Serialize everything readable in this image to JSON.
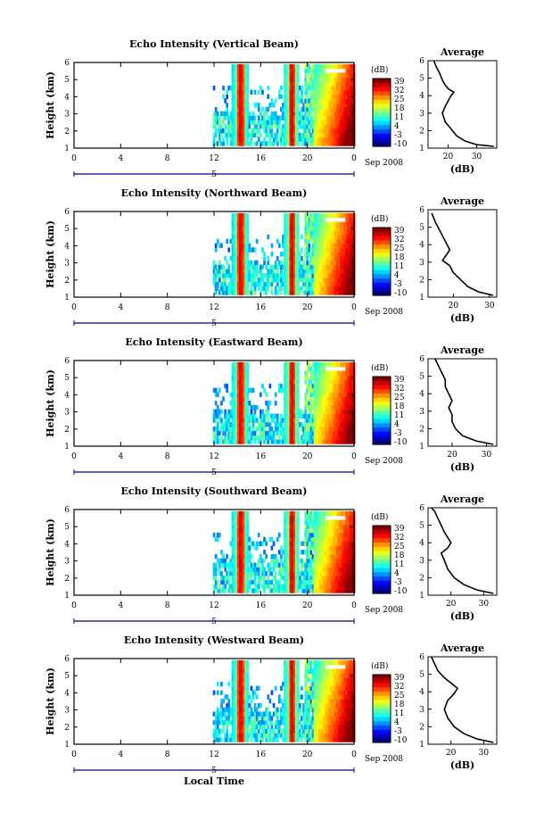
{
  "figure": {
    "xlabel": "Local Time",
    "date_label": "Sep 2008",
    "colorbar_unit": "(dB)",
    "colorbar_ticks": [
      "39",
      "32",
      "25",
      "18",
      "11",
      "4",
      "-3",
      "-10"
    ],
    "colorbar_range": [
      -10,
      39
    ],
    "profile_title": "Average",
    "profile_xlabel": "(dB)"
  },
  "chart_data": [
    {
      "type": "heatmap",
      "title": "Echo Intensity (Vertical Beam)",
      "ylabel": "Height (km)",
      "x_ticks": [
        "0",
        "4",
        "8",
        "12",
        "16",
        "20",
        "0"
      ],
      "x_day_tick": "5",
      "y_ticks": [
        "1",
        "2",
        "3",
        "4",
        "5",
        "6"
      ],
      "xlim": [
        0,
        24
      ],
      "ylim": [
        1,
        6
      ],
      "colorbar_unit": "(dB)",
      "colorbar_ticks": [
        "39",
        "32",
        "25",
        "18",
        "11",
        "4",
        "-3",
        "-10"
      ],
      "profile": {
        "title": "Average",
        "xlabel": "(dB)",
        "x_ticks": [
          "20",
          "30"
        ],
        "xlim": [
          13,
          37
        ],
        "y_ticks": [
          "1",
          "2",
          "3",
          "4",
          "5",
          "6"
        ],
        "points": [
          [
            36,
            1.1
          ],
          [
            30,
            1.2
          ],
          [
            26,
            1.4
          ],
          [
            23,
            1.7
          ],
          [
            21,
            2.1
          ],
          [
            19,
            2.5
          ],
          [
            18,
            3.0
          ],
          [
            19,
            3.4
          ],
          [
            20,
            3.7
          ],
          [
            21,
            4.0
          ],
          [
            22,
            4.2
          ],
          [
            20,
            4.4
          ],
          [
            19,
            4.6
          ],
          [
            18,
            4.9
          ],
          [
            17,
            5.3
          ],
          [
            16,
            5.6
          ],
          [
            15,
            6.0
          ]
        ]
      }
    },
    {
      "type": "heatmap",
      "title": "Echo Intensity (Northward Beam)",
      "ylabel": "Height (km)",
      "x_ticks": [
        "0",
        "4",
        "8",
        "12",
        "16",
        "20",
        "0"
      ],
      "x_day_tick": "5",
      "y_ticks": [
        "1",
        "2",
        "3",
        "4",
        "5",
        "6"
      ],
      "xlim": [
        0,
        24
      ],
      "ylim": [
        1,
        6
      ],
      "colorbar_unit": "(dB)",
      "colorbar_ticks": [
        "39",
        "32",
        "25",
        "18",
        "11",
        "4",
        "-3",
        "-10"
      ],
      "profile": {
        "title": "Average",
        "xlabel": "(dB)",
        "x_ticks": [
          "20",
          "30"
        ],
        "xlim": [
          13,
          32
        ],
        "y_ticks": [
          "1",
          "2",
          "3",
          "4",
          "5",
          "6"
        ],
        "points": [
          [
            31,
            1.1
          ],
          [
            27,
            1.3
          ],
          [
            24,
            1.6
          ],
          [
            22,
            2.0
          ],
          [
            20,
            2.4
          ],
          [
            19,
            2.8
          ],
          [
            17,
            3.1
          ],
          [
            18,
            3.4
          ],
          [
            19,
            3.7
          ],
          [
            18,
            4.1
          ],
          [
            17,
            4.5
          ],
          [
            16,
            4.9
          ],
          [
            15,
            5.3
          ],
          [
            14,
            5.8
          ]
        ]
      }
    },
    {
      "type": "heatmap",
      "title": "Echo Intensity (Eastward Beam)",
      "ylabel": "Height (km)",
      "x_ticks": [
        "0",
        "4",
        "8",
        "12",
        "16",
        "20",
        "0"
      ],
      "x_day_tick": "5",
      "y_ticks": [
        "1",
        "2",
        "3",
        "4",
        "5",
        "6"
      ],
      "xlim": [
        0,
        24
      ],
      "ylim": [
        1,
        6
      ],
      "colorbar_unit": "(dB)",
      "colorbar_ticks": [
        "39",
        "32",
        "25",
        "18",
        "11",
        "4",
        "-3",
        "-10"
      ],
      "profile": {
        "title": "Average",
        "xlabel": "(dB)",
        "x_ticks": [
          "20",
          "30"
        ],
        "xlim": [
          13,
          33
        ],
        "y_ticks": [
          "1",
          "2",
          "3",
          "4",
          "5",
          "6"
        ],
        "points": [
          [
            32,
            1.1
          ],
          [
            27,
            1.3
          ],
          [
            23,
            1.6
          ],
          [
            21,
            2.0
          ],
          [
            20,
            2.4
          ],
          [
            20,
            2.8
          ],
          [
            19,
            3.2
          ],
          [
            20,
            3.6
          ],
          [
            19,
            4.0
          ],
          [
            18,
            4.4
          ],
          [
            18,
            4.8
          ],
          [
            17,
            5.2
          ],
          [
            16,
            5.6
          ],
          [
            15,
            6.0
          ]
        ]
      }
    },
    {
      "type": "heatmap",
      "title": "Echo Intensity (Southward Beam)",
      "ylabel": "Height (km)",
      "x_ticks": [
        "0",
        "4",
        "8",
        "12",
        "16",
        "20",
        "0"
      ],
      "x_day_tick": "5",
      "y_ticks": [
        "1",
        "2",
        "3",
        "4",
        "5",
        "6"
      ],
      "xlim": [
        0,
        24
      ],
      "ylim": [
        1,
        6
      ],
      "colorbar_unit": "(dB)",
      "colorbar_ticks": [
        "39",
        "32",
        "25",
        "18",
        "11",
        "4",
        "-3",
        "-10"
      ],
      "profile": {
        "title": "Average",
        "xlabel": "(dB)",
        "x_ticks": [
          "20",
          "30"
        ],
        "xlim": [
          13,
          34
        ],
        "y_ticks": [
          "1",
          "2",
          "3",
          "4",
          "5",
          "6"
        ],
        "points": [
          [
            33,
            1.1
          ],
          [
            28,
            1.3
          ],
          [
            24,
            1.6
          ],
          [
            21,
            2.0
          ],
          [
            19,
            2.5
          ],
          [
            18,
            3.0
          ],
          [
            17,
            3.4
          ],
          [
            19,
            3.7
          ],
          [
            20,
            4.0
          ],
          [
            19,
            4.3
          ],
          [
            18,
            4.6
          ],
          [
            17,
            5.0
          ],
          [
            16,
            5.4
          ],
          [
            15,
            5.8
          ],
          [
            14,
            6.0
          ]
        ]
      }
    },
    {
      "type": "heatmap",
      "title": "Echo Intensity (Westward Beam)",
      "ylabel": "Height (km)",
      "x_ticks": [
        "0",
        "4",
        "8",
        "12",
        "16",
        "20",
        "0"
      ],
      "x_day_tick": "5",
      "y_ticks": [
        "1",
        "2",
        "3",
        "4",
        "5",
        "6"
      ],
      "xlim": [
        0,
        24
      ],
      "ylim": [
        1,
        6
      ],
      "colorbar_unit": "(dB)",
      "colorbar_ticks": [
        "39",
        "32",
        "25",
        "18",
        "11",
        "4",
        "-3",
        "-10"
      ],
      "profile": {
        "title": "Average",
        "xlabel": "(dB)",
        "x_ticks": [
          "20",
          "30"
        ],
        "xlim": [
          13,
          34
        ],
        "y_ticks": [
          "1",
          "2",
          "3",
          "4",
          "5",
          "6"
        ],
        "points": [
          [
            33,
            1.1
          ],
          [
            28,
            1.3
          ],
          [
            24,
            1.6
          ],
          [
            21,
            2.0
          ],
          [
            19,
            2.5
          ],
          [
            18,
            3.0
          ],
          [
            19,
            3.5
          ],
          [
            21,
            3.9
          ],
          [
            22,
            4.2
          ],
          [
            20,
            4.5
          ],
          [
            18,
            4.8
          ],
          [
            16,
            5.2
          ],
          [
            15,
            5.6
          ],
          [
            14,
            6.0
          ]
        ]
      }
    }
  ]
}
